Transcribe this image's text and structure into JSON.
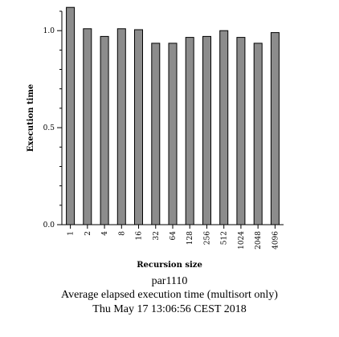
{
  "chart_data": {
    "type": "bar",
    "xlabel": "Recursion size",
    "ylabel": "Execution time",
    "categories": [
      "1",
      "2",
      "4",
      "8",
      "16",
      "32",
      "64",
      "128",
      "256",
      "512",
      "1024",
      "2048",
      "4096"
    ],
    "values": [
      1.12,
      1.01,
      0.97,
      1.01,
      1.005,
      0.935,
      0.935,
      0.965,
      0.97,
      1.0,
      0.965,
      0.935,
      0.99
    ],
    "ylim": [
      0,
      1.1
    ],
    "yticks": [
      "0.0",
      "0.5",
      "1.0"
    ],
    "grid": false,
    "bar_color": "#8c8c8c",
    "caption": [
      "par1110",
      "Average elapsed execution time (multisort only)",
      "Thu May 17 13:06:56 CEST 2018"
    ]
  }
}
